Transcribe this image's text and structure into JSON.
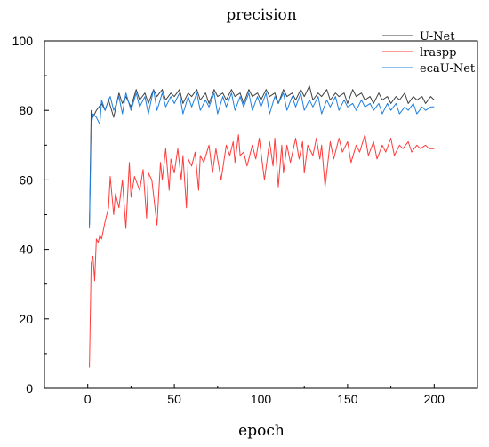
{
  "chart_data": {
    "type": "line",
    "title": "precision",
    "xlabel": "epoch",
    "ylabel": "",
    "xlim": [
      -25,
      225
    ],
    "ylim": [
      0,
      100
    ],
    "xticks": [
      0,
      50,
      100,
      150,
      200
    ],
    "yticks": [
      0,
      20,
      40,
      60,
      80,
      100
    ],
    "grid": false,
    "legend_position": "top-right",
    "series": [
      {
        "name": "U-Net",
        "color": "#404040",
        "x": [
          1,
          2,
          3,
          5,
          8,
          10,
          12,
          15,
          18,
          20,
          22,
          25,
          28,
          30,
          33,
          35,
          38,
          40,
          43,
          45,
          48,
          50,
          53,
          55,
          58,
          60,
          63,
          65,
          68,
          70,
          73,
          75,
          78,
          80,
          83,
          85,
          88,
          90,
          93,
          95,
          98,
          100,
          103,
          105,
          108,
          110,
          113,
          115,
          118,
          120,
          123,
          125,
          128,
          130,
          133,
          135,
          138,
          140,
          143,
          145,
          148,
          150,
          153,
          155,
          158,
          160,
          163,
          165,
          168,
          170,
          173,
          175,
          178,
          180,
          183,
          185,
          188,
          190,
          193,
          195,
          198,
          200
        ],
        "y": [
          47,
          80,
          78,
          80,
          82,
          80,
          83,
          78,
          85,
          82,
          84,
          81,
          86,
          83,
          85,
          82,
          86,
          84,
          86,
          83,
          85,
          84,
          86,
          82,
          85,
          84,
          86,
          83,
          85,
          82,
          86,
          84,
          85,
          83,
          86,
          84,
          85,
          82,
          86,
          84,
          85,
          83,
          86,
          84,
          85,
          82,
          86,
          84,
          85,
          83,
          86,
          84,
          87,
          83,
          85,
          84,
          86,
          83,
          85,
          84,
          85,
          82,
          86,
          84,
          85,
          83,
          84,
          82,
          85,
          83,
          84,
          82,
          84,
          83,
          85,
          82,
          84,
          83,
          84,
          82,
          84,
          83
        ]
      },
      {
        "name": "lraspp",
        "color": "#ff3b3b",
        "x": [
          1,
          2,
          3,
          4,
          5,
          6,
          7,
          8,
          10,
          12,
          13,
          15,
          16,
          18,
          20,
          22,
          24,
          25,
          27,
          30,
          32,
          34,
          35,
          37,
          40,
          42,
          43,
          45,
          47,
          48,
          50,
          52,
          54,
          55,
          57,
          58,
          60,
          62,
          64,
          65,
          67,
          70,
          72,
          74,
          75,
          77,
          80,
          82,
          84,
          85,
          87,
          88,
          90,
          92,
          95,
          97,
          99,
          100,
          102,
          105,
          107,
          108,
          110,
          112,
          113,
          115,
          117,
          120,
          122,
          124,
          125,
          127,
          130,
          132,
          134,
          135,
          137,
          140,
          142,
          145,
          147,
          150,
          152,
          155,
          157,
          160,
          162,
          165,
          167,
          170,
          172,
          175,
          177,
          180,
          182,
          185,
          187,
          190,
          192,
          195,
          197,
          200
        ],
        "y": [
          6,
          36,
          38,
          31,
          43,
          42,
          44,
          43,
          48,
          52,
          61,
          50,
          56,
          52,
          60,
          46,
          65,
          55,
          61,
          57,
          63,
          49,
          62,
          60,
          47,
          65,
          60,
          69,
          57,
          66,
          62,
          69,
          60,
          67,
          52,
          66,
          64,
          68,
          57,
          67,
          65,
          70,
          62,
          69,
          66,
          60,
          70,
          67,
          71,
          65,
          73,
          67,
          68,
          64,
          70,
          66,
          72,
          68,
          60,
          71,
          64,
          72,
          58,
          70,
          62,
          70,
          65,
          72,
          66,
          71,
          62,
          70,
          67,
          72,
          66,
          70,
          58,
          71,
          66,
          72,
          68,
          71,
          65,
          70,
          68,
          73,
          67,
          71,
          66,
          70,
          68,
          72,
          67,
          70,
          69,
          71,
          68,
          70,
          69,
          70,
          69,
          69
        ]
      },
      {
        "name": "ecaU-Net",
        "color": "#1e7fe0",
        "x": [
          1,
          2,
          3,
          5,
          7,
          8,
          10,
          12,
          13,
          15,
          18,
          20,
          22,
          25,
          28,
          30,
          33,
          35,
          38,
          40,
          43,
          45,
          48,
          50,
          53,
          55,
          58,
          60,
          63,
          65,
          68,
          70,
          73,
          75,
          78,
          80,
          83,
          85,
          88,
          90,
          93,
          95,
          98,
          100,
          103,
          105,
          108,
          110,
          113,
          115,
          118,
          120,
          123,
          125,
          128,
          130,
          133,
          135,
          138,
          140,
          143,
          145,
          148,
          150,
          153,
          155,
          158,
          160,
          163,
          165,
          168,
          170,
          173,
          175,
          178,
          180,
          183,
          185,
          188,
          190,
          193,
          195,
          198,
          200
        ],
        "y": [
          46,
          75,
          79,
          78,
          76,
          83,
          80,
          83,
          84,
          80,
          84,
          79,
          85,
          80,
          85,
          81,
          84,
          79,
          86,
          80,
          85,
          81,
          84,
          82,
          85,
          79,
          84,
          81,
          85,
          80,
          83,
          81,
          85,
          79,
          84,
          81,
          85,
          80,
          84,
          81,
          85,
          80,
          84,
          81,
          85,
          79,
          84,
          82,
          85,
          80,
          84,
          81,
          85,
          80,
          83,
          81,
          84,
          79,
          83,
          81,
          84,
          80,
          83,
          81,
          82,
          80,
          83,
          81,
          82,
          80,
          82,
          79,
          82,
          80,
          82,
          79,
          81,
          80,
          82,
          79,
          81,
          80,
          81,
          81
        ]
      }
    ]
  }
}
